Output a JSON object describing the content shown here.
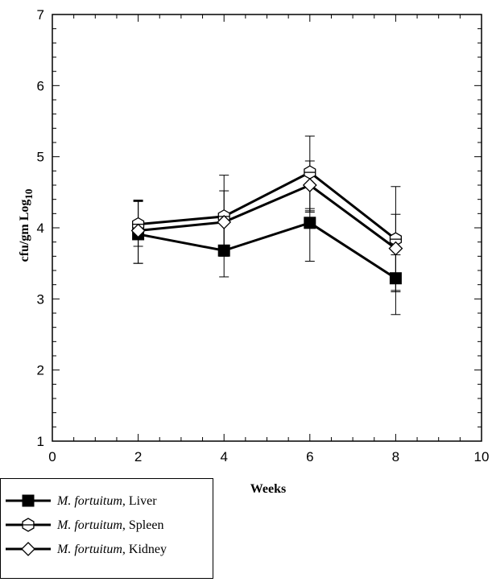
{
  "chart_data": {
    "type": "line",
    "title": "",
    "xlabel": "Weeks",
    "ylabel": "cfu/gm Log",
    "ylabel_subscript": "10",
    "xlim": [
      0,
      10
    ],
    "ylim": [
      1,
      7
    ],
    "x_major_ticks": [
      0,
      2,
      4,
      6,
      8,
      10
    ],
    "y_major_ticks": [
      1,
      2,
      3,
      4,
      5,
      6,
      7
    ],
    "x_tick_labels": [
      "0",
      "2",
      "4",
      "6",
      "8",
      "10"
    ],
    "y_tick_labels": [
      "1",
      "2",
      "3",
      "4",
      "5",
      "6",
      "7"
    ],
    "grid": false,
    "legend_position": "bottom-left",
    "x": [
      2,
      4,
      6,
      8
    ],
    "series": [
      {
        "name": "M. fortuitum, Liver",
        "name_italic": "M. fortuitum",
        "name_suffix": ", Liver",
        "marker": "filled-square",
        "values": [
          3.91,
          3.68,
          4.07,
          3.29
        ],
        "err_low": [
          3.5,
          3.31,
          3.53,
          2.78
        ],
        "err_high": [
          4.37,
          4.07,
          4.27,
          3.62
        ]
      },
      {
        "name": "M. fortuitum, Spleen",
        "name_italic": "M. fortuitum",
        "name_suffix": ", Spleen",
        "marker": "open-hexagon",
        "values": [
          4.05,
          4.16,
          4.78,
          3.84
        ],
        "err_low": [
          3.74,
          3.6,
          4.24,
          3.12
        ],
        "err_high": [
          4.39,
          4.74,
          5.29,
          4.58
        ]
      },
      {
        "name": "M. fortuitum, Kidney",
        "name_italic": "M. fortuitum",
        "name_suffix": ", Kidney",
        "marker": "open-diamond",
        "values": [
          3.96,
          4.08,
          4.6,
          3.71
        ],
        "err_low": [
          3.5,
          3.64,
          4.22,
          3.1
        ],
        "err_high": [
          4.38,
          4.52,
          4.94,
          4.19
        ]
      }
    ]
  }
}
